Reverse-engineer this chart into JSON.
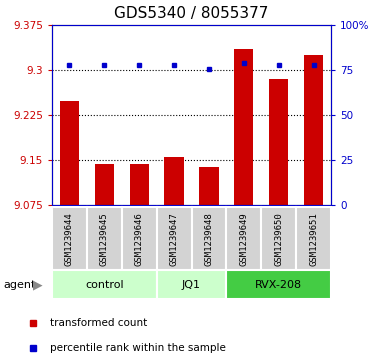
{
  "title": "GDS5340 / 8055377",
  "samples": [
    "GSM1239644",
    "GSM1239645",
    "GSM1239646",
    "GSM1239647",
    "GSM1239648",
    "GSM1239649",
    "GSM1239650",
    "GSM1239651"
  ],
  "bar_values": [
    9.248,
    9.143,
    9.143,
    9.155,
    9.138,
    9.335,
    9.285,
    9.325
  ],
  "percentile_values": [
    78,
    78,
    78,
    78,
    76,
    79,
    78,
    78
  ],
  "ylim_left": [
    9.075,
    9.375
  ],
  "ylim_right": [
    0,
    100
  ],
  "yticks_left": [
    9.075,
    9.15,
    9.225,
    9.3,
    9.375
  ],
  "yticks_right": [
    0,
    25,
    50,
    75,
    100
  ],
  "bar_color": "#cc0000",
  "dot_color": "#0000cc",
  "group_ranges": [
    {
      "start": 0,
      "end": 2,
      "label": "control",
      "color": "#ccffcc"
    },
    {
      "start": 3,
      "end": 4,
      "label": "JQ1",
      "color": "#ccffcc"
    },
    {
      "start": 5,
      "end": 7,
      "label": "RVX-208",
      "color": "#44cc44"
    }
  ],
  "legend_items": [
    {
      "label": "transformed count",
      "color": "#cc0000"
    },
    {
      "label": "percentile rank within the sample",
      "color": "#0000cc"
    }
  ],
  "title_fontsize": 11,
  "tick_fontsize": 7.5,
  "label_fontsize": 6.5,
  "group_fontsize": 8,
  "bar_width": 0.55
}
